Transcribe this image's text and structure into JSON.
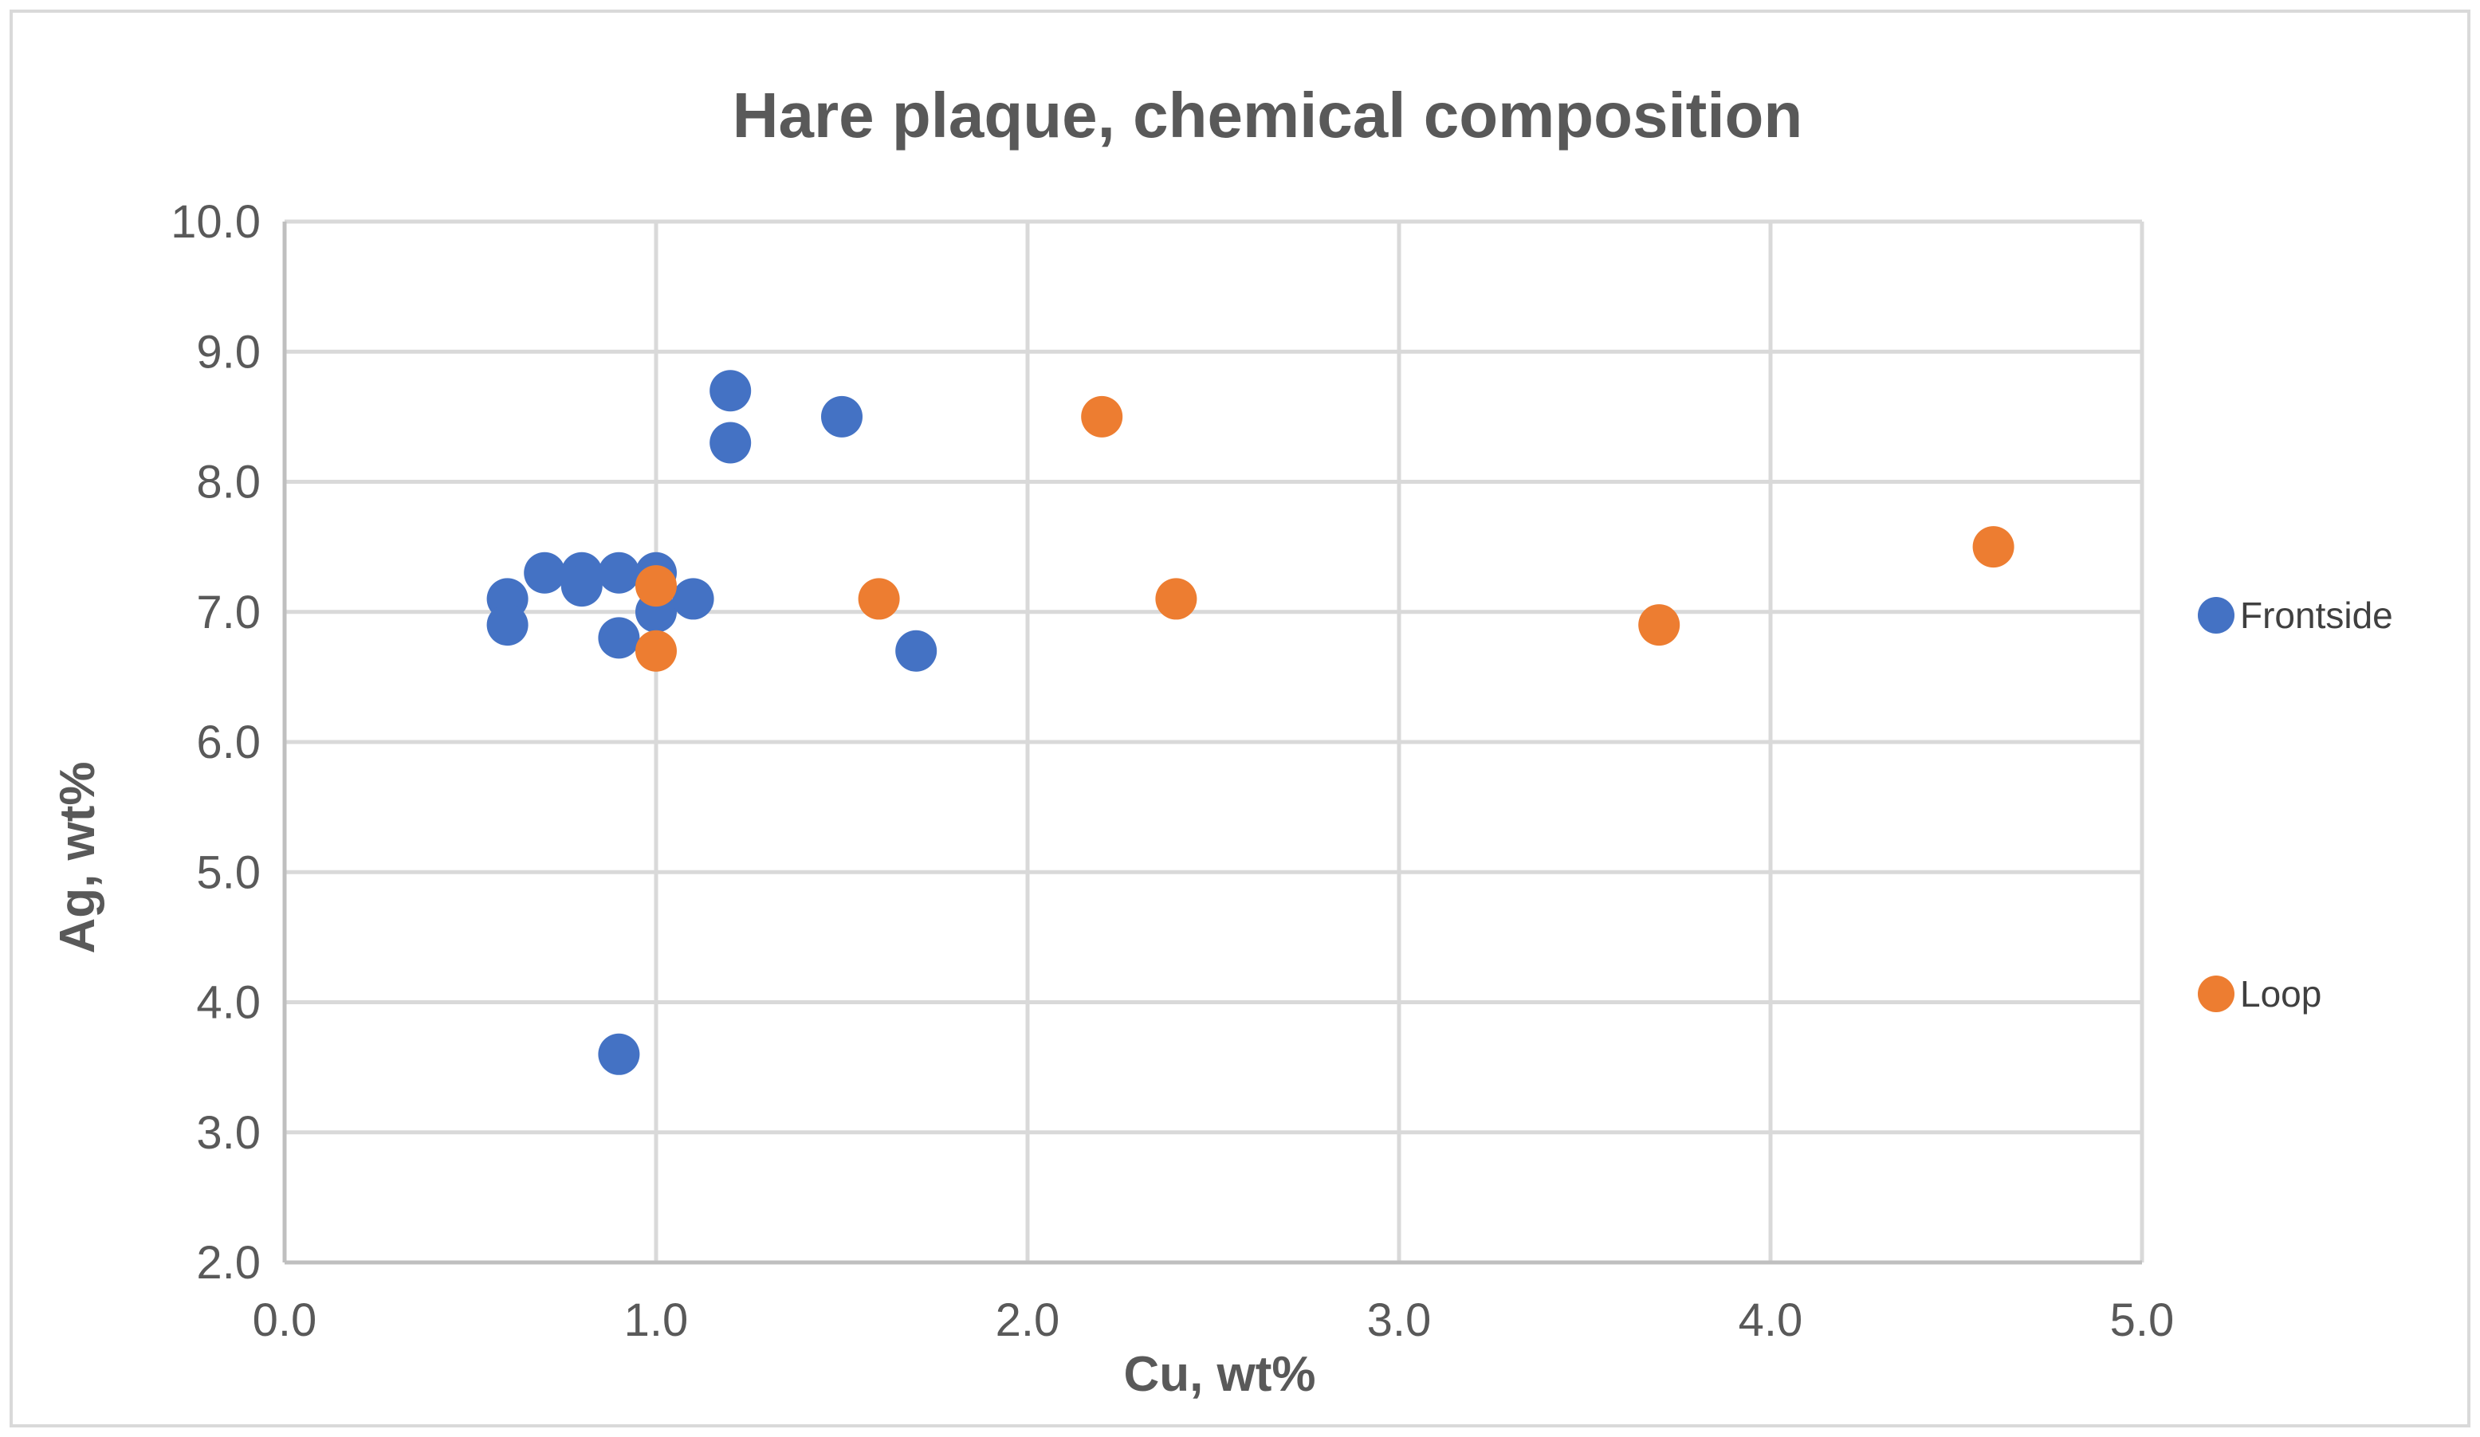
{
  "chart_data": {
    "type": "scatter",
    "title": "Hare plaque, chemical composition",
    "xlabel": "Cu, wt%",
    "ylabel": "Ag, wt%",
    "xlim": [
      0,
      5
    ],
    "ylim": [
      2,
      10
    ],
    "x_ticks": [
      "0.0",
      "1.0",
      "2.0",
      "3.0",
      "4.0",
      "5.0"
    ],
    "y_ticks": [
      "2.0",
      "3.0",
      "4.0",
      "5.0",
      "6.0",
      "7.0",
      "8.0",
      "9.0",
      "10.0"
    ],
    "grid": true,
    "legend_position": "right",
    "series": [
      {
        "name": "Frontside",
        "color": "#4472C4",
        "points": [
          [
            0.6,
            7.1
          ],
          [
            0.6,
            6.9
          ],
          [
            0.7,
            7.3
          ],
          [
            0.8,
            7.3
          ],
          [
            0.8,
            7.2
          ],
          [
            0.9,
            7.3
          ],
          [
            0.9,
            6.8
          ],
          [
            1.0,
            7.3
          ],
          [
            1.0,
            7.0
          ],
          [
            1.1,
            7.1
          ],
          [
            1.2,
            8.7
          ],
          [
            1.2,
            8.3
          ],
          [
            1.5,
            8.5
          ],
          [
            1.7,
            6.7
          ],
          [
            0.9,
            3.6
          ]
        ]
      },
      {
        "name": "Loop",
        "color": "#ED7D31",
        "points": [
          [
            1.0,
            7.2
          ],
          [
            1.0,
            6.7
          ],
          [
            1.6,
            7.1
          ],
          [
            2.2,
            8.5
          ],
          [
            2.4,
            7.1
          ],
          [
            3.7,
            6.9
          ],
          [
            4.6,
            7.5
          ]
        ]
      }
    ]
  }
}
